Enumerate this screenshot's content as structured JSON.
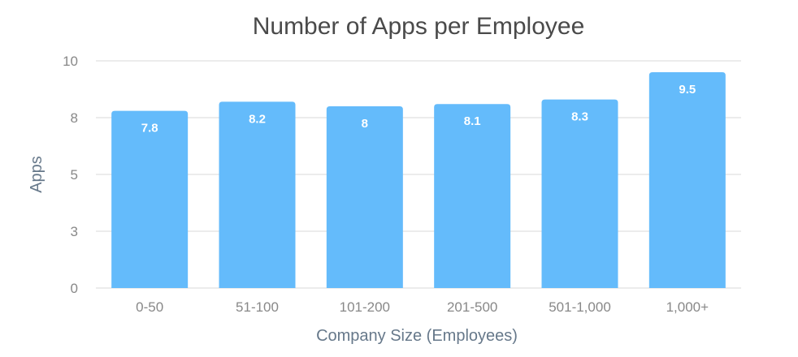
{
  "chart_data": {
    "type": "bar",
    "title": "Number of Apps per Employee",
    "xlabel": "Company Size (Employees)",
    "ylabel": "Apps",
    "categories": [
      "0-50",
      "51-100",
      "101-200",
      "201-500",
      "501-1,000",
      "1,000+"
    ],
    "values": [
      7.8,
      8.2,
      8,
      8.1,
      8.3,
      9.5
    ],
    "data_labels": [
      "7.8",
      "8.2",
      "8",
      "8.1",
      "8.3",
      "9.5"
    ],
    "ylim": [
      0,
      10
    ],
    "yticks": [
      0,
      2.5,
      5,
      7.5,
      10
    ],
    "ytick_labels": [
      "0",
      "3",
      "5",
      "8",
      "10"
    ],
    "grid": true,
    "legend": "none",
    "bar_color": "#64bbfb"
  }
}
